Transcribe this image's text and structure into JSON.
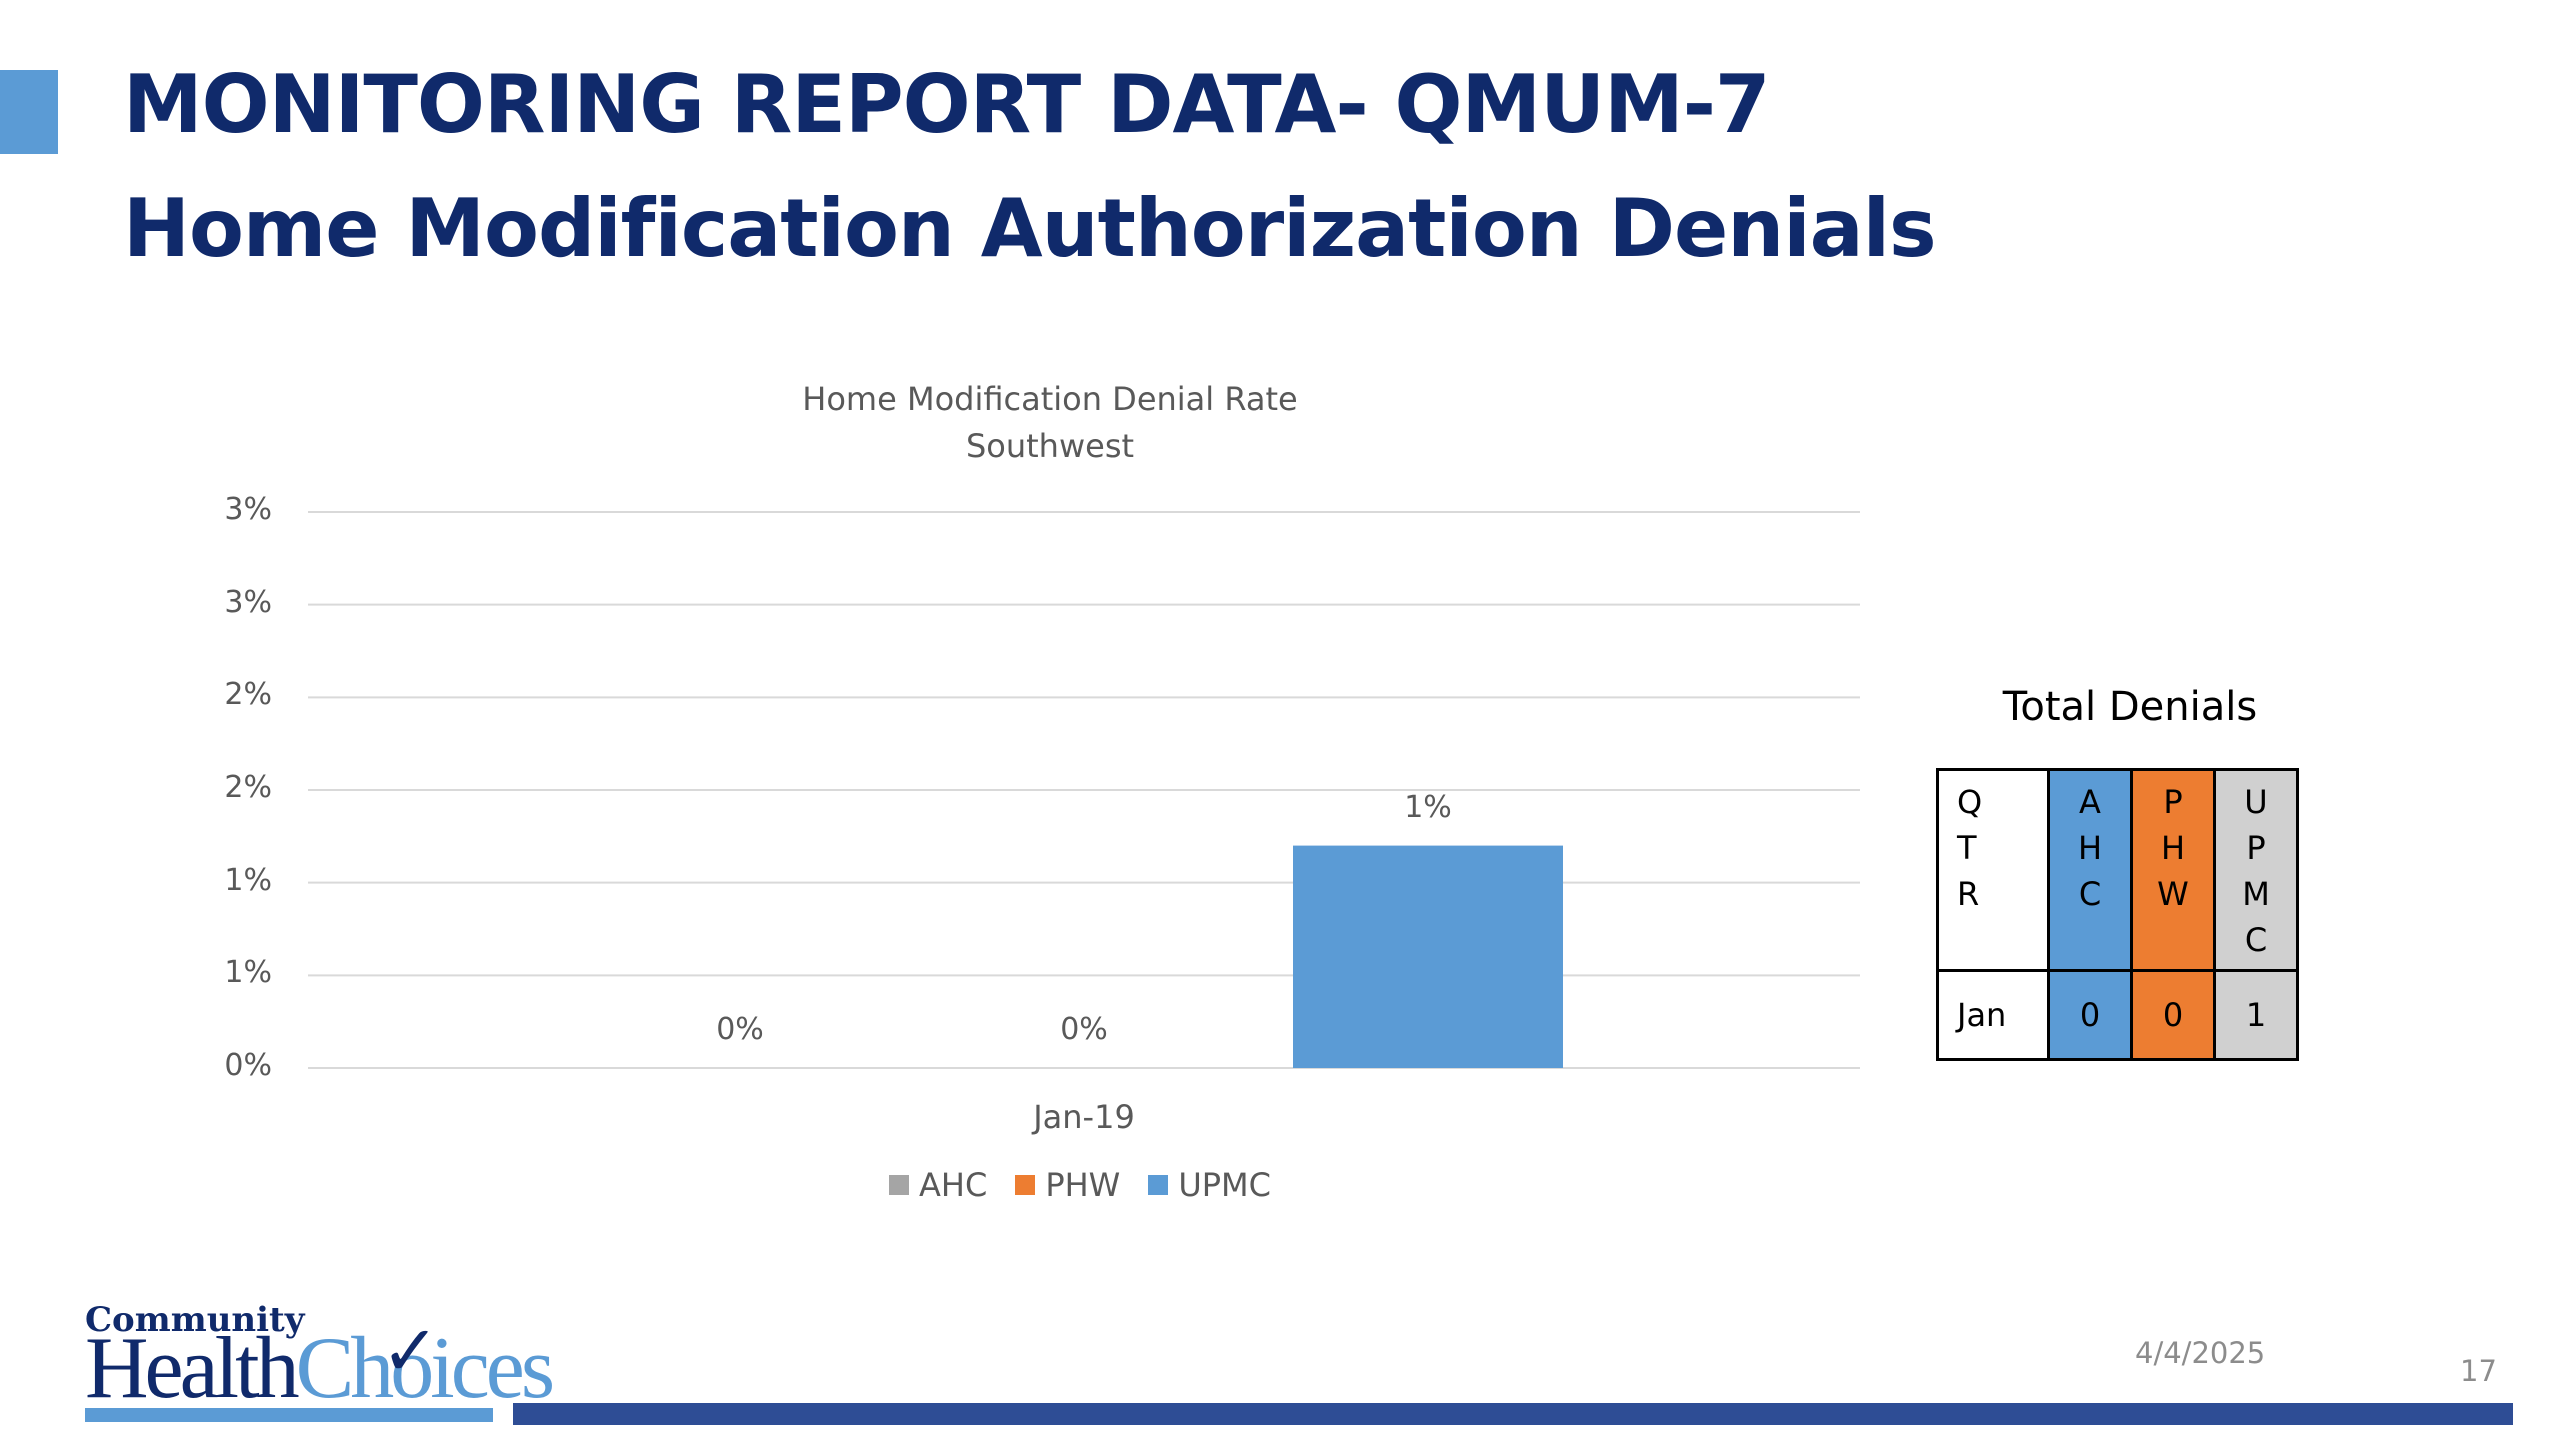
{
  "slide": {
    "title_line1": "MONITORING REPORT DATA- QMUM-7",
    "title_line2": "Home Modification Authorization Denials",
    "date": "4/4/2025",
    "page_number": "17"
  },
  "logo": {
    "top_text": "Community",
    "health_text": "Health",
    "choices_text": "Choices",
    "check_icon": "checkmark-icon"
  },
  "colors": {
    "title": "#102a6b",
    "accent": "#5b9bd5",
    "ahc": "#a5a5a5",
    "phw": "#ed7d31",
    "upmc": "#5b9bd5",
    "footer_bar": "#2e4d95"
  },
  "chart_data": {
    "type": "bar",
    "title": "Home Modification Denial Rate",
    "subtitle": "Southwest",
    "categories": [
      "Jan-19"
    ],
    "series": [
      {
        "name": "AHC",
        "values": [
          0
        ],
        "data_labels": [
          "0%"
        ],
        "color": "#a5a5a5"
      },
      {
        "name": "PHW",
        "values": [
          0
        ],
        "data_labels": [
          "0%"
        ],
        "color": "#ed7d31"
      },
      {
        "name": "UPMC",
        "values": [
          1.2
        ],
        "data_labels": [
          "1%"
        ],
        "color": "#5b9bd5"
      }
    ],
    "ylim": [
      0,
      3
    ],
    "y_ticks": [
      0,
      0.5,
      1,
      1.5,
      2,
      2.5,
      3
    ],
    "y_tick_labels": [
      "0%",
      "1%",
      "1%",
      "2%",
      "2%",
      "3%",
      "3%"
    ],
    "xlabel": "",
    "ylabel": "",
    "grid": true,
    "legend_position": "bottom"
  },
  "table": {
    "title": "Total Denials",
    "header_letters": {
      "qtr": [
        "Q",
        "T",
        "R"
      ],
      "ahc": [
        "A",
        "H",
        "C"
      ],
      "phw": [
        "P",
        "H",
        "W"
      ],
      "upmc": [
        "U",
        "P",
        "M",
        "C"
      ]
    },
    "rows": [
      {
        "qtr": "Jan",
        "ahc": "0",
        "phw": "0",
        "upmc": "1"
      }
    ]
  }
}
